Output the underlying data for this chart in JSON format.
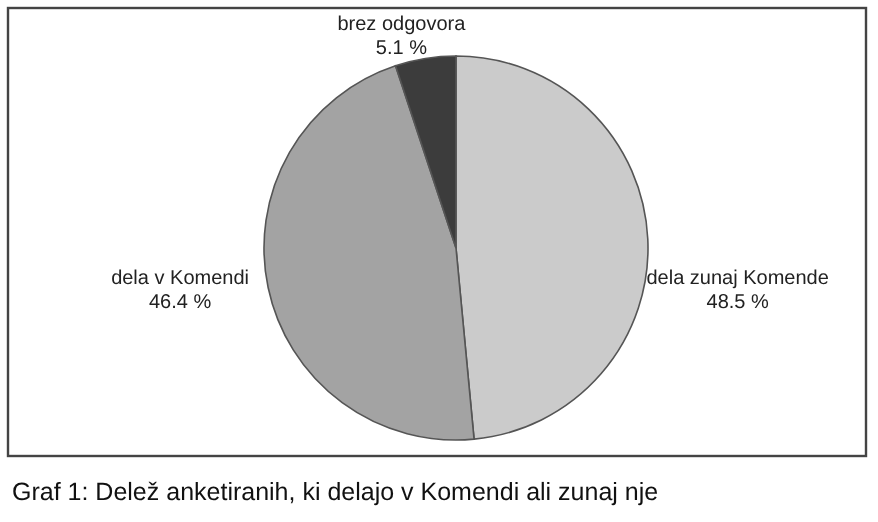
{
  "chart_data": {
    "type": "pie",
    "categories": [
      "dela zunaj Komende",
      "dela v Komendi",
      "brez odgovora"
    ],
    "values": [
      48.5,
      46.4,
      5.1
    ],
    "colors": [
      "#cbcbcb",
      "#a3a3a3",
      "#3c3c3c"
    ],
    "value_labels": [
      "48.5 %",
      "46.4 %",
      "5.1 %"
    ],
    "annotations": [
      "Graf 1: Delež anketiranih, ki delajo v Komendi ali zunaj nje"
    ]
  }
}
